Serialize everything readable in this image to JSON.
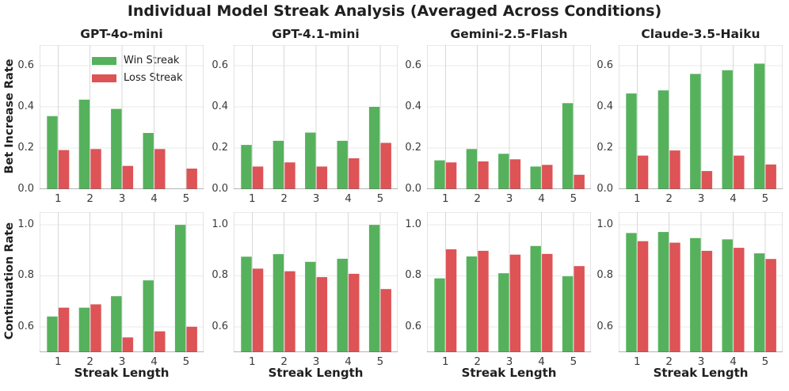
{
  "title": "Individual Model Streak Analysis (Averaged Across Conditions)",
  "legend": {
    "items": [
      {
        "label": "Win Streak",
        "color": "#56b15c"
      },
      {
        "label": "Loss Streak",
        "color": "#dd5356"
      }
    ]
  },
  "colors": {
    "win": "#56b15c",
    "loss": "#dd5356",
    "grid_vertical": "#d8d8d8",
    "grid_horizontal": "#eaeaea",
    "spine": "#c8c8c8",
    "spine_top": "#d4d4d4",
    "spine_bottom": "#6b6b6b",
    "title_text": "#1f1f1f",
    "tick_text": "#3a3a3a"
  },
  "chart_data": {
    "type": "bar",
    "categories": [
      "1",
      "2",
      "3",
      "4",
      "5"
    ],
    "xlabel": "Streak Length",
    "columns": [
      "GPT-4o-mini",
      "GPT-4.1-mini",
      "Gemini-2.5-Flash",
      "Claude-3.5-Haiku"
    ],
    "legend_position": "upper left of first subplot",
    "grid": true,
    "rows": [
      {
        "ylabel": "Bet Increase Rate",
        "ylim": [
          0.0,
          0.7
        ],
        "yticks": [
          "0.0",
          "0.2",
          "0.4",
          "0.6"
        ],
        "series": [
          {
            "model": "GPT-4o-mini",
            "win": [
              0.355,
              0.435,
              0.39,
              0.273,
              0.0
            ],
            "loss": [
              0.19,
              0.195,
              0.113,
              0.195,
              0.1
            ]
          },
          {
            "model": "GPT-4.1-mini",
            "win": [
              0.215,
              0.235,
              0.275,
              0.235,
              0.4
            ],
            "loss": [
              0.11,
              0.13,
              0.11,
              0.15,
              0.225
            ]
          },
          {
            "model": "Gemini-2.5-Flash",
            "win": [
              0.14,
              0.195,
              0.172,
              0.11,
              0.418
            ],
            "loss": [
              0.13,
              0.135,
              0.145,
              0.118,
              0.07
            ]
          },
          {
            "model": "Claude-3.5-Haiku",
            "win": [
              0.465,
              0.48,
              0.56,
              0.578,
              0.61
            ],
            "loss": [
              0.163,
              0.188,
              0.088,
              0.163,
              0.12
            ]
          }
        ]
      },
      {
        "ylabel": "Continuation Rate",
        "ylim": [
          0.5,
          1.05
        ],
        "yticks": [
          "0.6",
          "0.8",
          "1.0"
        ],
        "series": [
          {
            "model": "GPT-4o-mini",
            "win": [
              0.64,
              0.675,
              0.72,
              0.782,
              1.0
            ],
            "loss": [
              0.675,
              0.688,
              0.558,
              0.582,
              0.6
            ]
          },
          {
            "model": "GPT-4.1-mini",
            "win": [
              0.875,
              0.885,
              0.855,
              0.867,
              1.0
            ],
            "loss": [
              0.828,
              0.818,
              0.795,
              0.808,
              0.748
            ]
          },
          {
            "model": "Gemini-2.5-Flash",
            "win": [
              0.79,
              0.876,
              0.81,
              0.917,
              0.798
            ],
            "loss": [
              0.904,
              0.898,
              0.883,
              0.886,
              0.838
            ]
          },
          {
            "model": "Claude-3.5-Haiku",
            "win": [
              0.968,
              0.972,
              0.948,
              0.943,
              0.888
            ],
            "loss": [
              0.936,
              0.93,
              0.898,
              0.91,
              0.866
            ]
          }
        ]
      }
    ]
  }
}
